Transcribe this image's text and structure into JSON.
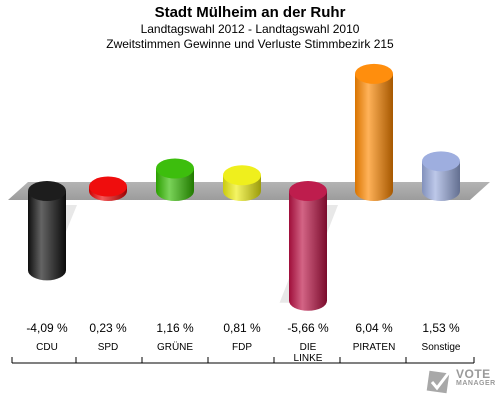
{
  "header": {
    "title": "Stadt Mülheim an der Ruhr",
    "subtitle1": "Landtagswahl 2012 - Landtagswahl 2010",
    "subtitle2": "Zweitstimmen Gewinne und Verluste Stimmbezirk 215"
  },
  "chart_data": {
    "type": "bar",
    "categories": [
      "CDU",
      "SPD",
      "GRÜNE",
      "FDP",
      "DIE LINKE",
      "PIRATEN",
      "Sonstige"
    ],
    "value_labels": [
      "-4,09 %",
      "0,23 %",
      "1,16 %",
      "0,81 %",
      "-5,66 %",
      "6,04 %",
      "1,53 %"
    ],
    "values": [
      -4.09,
      0.23,
      1.16,
      0.81,
      -5.66,
      6.04,
      1.53
    ],
    "colors": [
      "#111111",
      "#ee0000",
      "#33bb00",
      "#eeee11",
      "#bb1144",
      "#ff8800",
      "#99aadd"
    ],
    "unit": "%",
    "ylim": [
      -7,
      7
    ],
    "grid": false,
    "legend": "none"
  },
  "logo": {
    "text": "VOTE",
    "sub": "MANAGER"
  }
}
